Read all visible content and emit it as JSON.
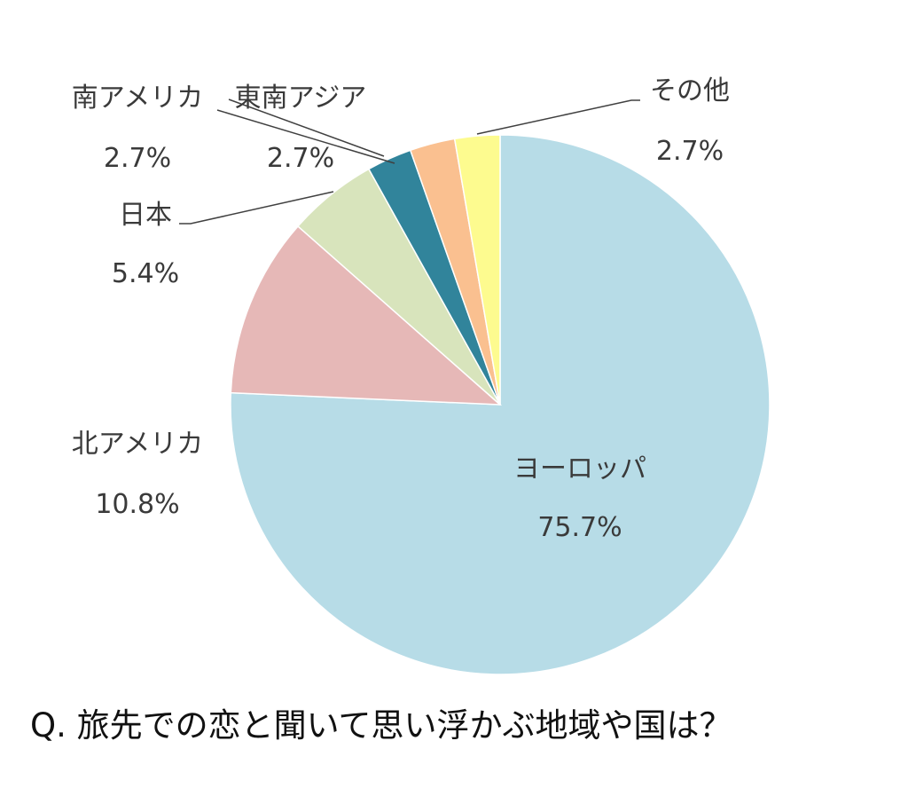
{
  "chart_data": {
    "type": "pie",
    "categories": [
      "ヨーロッパ",
      "北アメリカ",
      "日本",
      "南アメリカ",
      "東南アジア",
      "その他"
    ],
    "values": [
      75.7,
      10.8,
      5.4,
      2.7,
      2.7,
      2.7
    ],
    "value_labels": [
      "75.7%",
      "10.8%",
      "5.4%",
      "2.7%",
      "2.7%",
      "2.7%"
    ],
    "colors": [
      "#b7dce7",
      "#e6b8b7",
      "#d8e4bc",
      "#31849b",
      "#fac090",
      "#fdfb8f"
    ],
    "start": "12 o'clock",
    "direction": "clockwise",
    "legend": "none"
  },
  "question": "Q.  旅先での恋と聞いて思い浮かぶ地域や国は？"
}
